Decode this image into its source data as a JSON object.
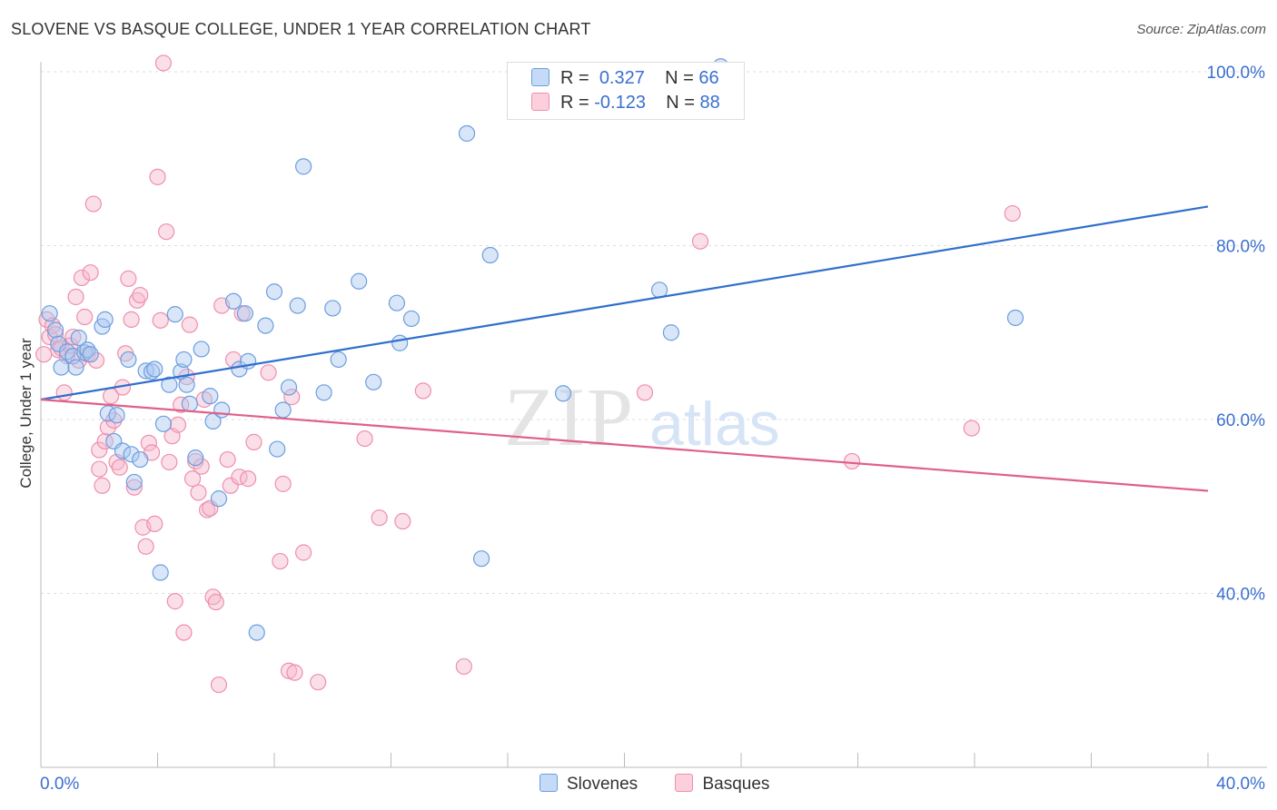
{
  "title": "SLOVENE VS BASQUE COLLEGE, UNDER 1 YEAR CORRELATION CHART",
  "source": "Source: ZipAtlas.com",
  "watermark": {
    "zip": "ZIP",
    "atlas": "atlas"
  },
  "legend_top": [
    {
      "r_label": "R =",
      "r_value": "0.327",
      "n_label": "N =",
      "n_value": "66",
      "color": "#a8c8f0"
    },
    {
      "r_label": "R =",
      "r_value": "-0.123",
      "n_label": "N =",
      "n_value": "88",
      "color": "#f7b8cb"
    }
  ],
  "legend_bottom": [
    {
      "label": "Slovenes",
      "color": "#a8c8f0"
    },
    {
      "label": "Basques",
      "color": "#f7b8cb"
    }
  ],
  "chart_data": {
    "type": "scatter",
    "title": "SLOVENE VS BASQUE COLLEGE, UNDER 1 YEAR CORRELATION CHART",
    "xlabel": "",
    "ylabel": "College, Under 1 year",
    "xlim": [
      0,
      40
    ],
    "ylim": [
      20,
      100
    ],
    "x_tick_labels": [
      "0.0%",
      "40.0%"
    ],
    "y_tick_labels": [
      "40.0%",
      "60.0%",
      "80.0%",
      "100.0%"
    ],
    "y_ticks": [
      40,
      60,
      80,
      100
    ],
    "grid": true,
    "legend_position": "top-center",
    "series": [
      {
        "name": "Slovenes",
        "color": "#6d9de0",
        "fill": "#a8c8f0",
        "trend": {
          "x": [
            0,
            40
          ],
          "y": [
            62.3,
            84.5
          ],
          "color": "#2f6fcc"
        },
        "points": [
          [
            0.3,
            72.2
          ],
          [
            0.5,
            70.3
          ],
          [
            0.6,
            68.7
          ],
          [
            0.7,
            66.0
          ],
          [
            0.9,
            67.8
          ],
          [
            1.1,
            67.3
          ],
          [
            1.2,
            66.0
          ],
          [
            1.3,
            69.4
          ],
          [
            1.5,
            67.7
          ],
          [
            1.6,
            68.0
          ],
          [
            1.7,
            67.5
          ],
          [
            2.1,
            70.7
          ],
          [
            2.2,
            71.5
          ],
          [
            2.3,
            60.7
          ],
          [
            2.5,
            57.5
          ],
          [
            2.6,
            60.5
          ],
          [
            2.8,
            56.4
          ],
          [
            3.0,
            66.9
          ],
          [
            3.1,
            56.0
          ],
          [
            3.2,
            52.8
          ],
          [
            3.4,
            55.4
          ],
          [
            3.6,
            65.6
          ],
          [
            3.8,
            65.5
          ],
          [
            3.9,
            65.8
          ],
          [
            4.1,
            42.4
          ],
          [
            4.2,
            59.5
          ],
          [
            4.4,
            64.0
          ],
          [
            4.6,
            72.1
          ],
          [
            4.8,
            65.5
          ],
          [
            4.9,
            66.9
          ],
          [
            5.0,
            64.0
          ],
          [
            5.1,
            61.8
          ],
          [
            5.3,
            55.6
          ],
          [
            5.5,
            68.1
          ],
          [
            5.8,
            62.7
          ],
          [
            5.9,
            59.8
          ],
          [
            6.1,
            50.9
          ],
          [
            6.2,
            61.1
          ],
          [
            6.6,
            73.6
          ],
          [
            6.8,
            65.8
          ],
          [
            7.0,
            72.2
          ],
          [
            7.1,
            66.7
          ],
          [
            7.4,
            35.5
          ],
          [
            7.7,
            70.8
          ],
          [
            8.0,
            74.7
          ],
          [
            8.1,
            56.6
          ],
          [
            8.3,
            61.1
          ],
          [
            8.5,
            63.7
          ],
          [
            8.8,
            73.1
          ],
          [
            9.0,
            89.1
          ],
          [
            9.7,
            63.1
          ],
          [
            10.0,
            72.8
          ],
          [
            10.2,
            66.9
          ],
          [
            10.9,
            75.9
          ],
          [
            11.4,
            64.3
          ],
          [
            12.2,
            73.4
          ],
          [
            12.3,
            68.8
          ],
          [
            12.7,
            71.6
          ],
          [
            14.6,
            92.9
          ],
          [
            15.1,
            44.0
          ],
          [
            15.4,
            78.9
          ],
          [
            17.9,
            63.0
          ],
          [
            21.2,
            74.9
          ],
          [
            21.6,
            70.0
          ],
          [
            23.3,
            100.6
          ],
          [
            33.4,
            71.7
          ]
        ]
      },
      {
        "name": "Basques",
        "color": "#ee8fab",
        "fill": "#f7b8cb",
        "trend": {
          "x": [
            0,
            40
          ],
          "y": [
            62.3,
            51.8
          ],
          "color": "#e0608a"
        },
        "points": [
          [
            0.1,
            67.5
          ],
          [
            0.2,
            71.5
          ],
          [
            0.3,
            69.5
          ],
          [
            0.4,
            70.8
          ],
          [
            0.5,
            69.8
          ],
          [
            0.6,
            68.0
          ],
          [
            0.7,
            68.2
          ],
          [
            0.8,
            63.1
          ],
          [
            0.9,
            67.3
          ],
          [
            1.0,
            68.5
          ],
          [
            1.1,
            69.5
          ],
          [
            1.2,
            74.1
          ],
          [
            1.3,
            66.8
          ],
          [
            1.4,
            76.3
          ],
          [
            1.5,
            71.8
          ],
          [
            1.6,
            67.5
          ],
          [
            1.7,
            76.9
          ],
          [
            1.8,
            84.8
          ],
          [
            1.9,
            66.8
          ],
          [
            2.0,
            56.5
          ],
          [
            2.1,
            52.4
          ],
          [
            2.2,
            57.5
          ],
          [
            2.3,
            59.1
          ],
          [
            2.4,
            62.7
          ],
          [
            2.5,
            59.9
          ],
          [
            2.6,
            55.1
          ],
          [
            2.7,
            54.5
          ],
          [
            2.8,
            63.7
          ],
          [
            2.9,
            67.6
          ],
          [
            3.0,
            76.2
          ],
          [
            3.1,
            71.5
          ],
          [
            3.2,
            52.2
          ],
          [
            3.3,
            73.7
          ],
          [
            3.4,
            74.3
          ],
          [
            3.5,
            47.6
          ],
          [
            3.6,
            45.4
          ],
          [
            3.7,
            57.3
          ],
          [
            3.8,
            56.2
          ],
          [
            3.9,
            48.0
          ],
          [
            4.0,
            87.9
          ],
          [
            4.1,
            71.4
          ],
          [
            4.3,
            81.6
          ],
          [
            4.4,
            55.1
          ],
          [
            4.5,
            58.1
          ],
          [
            4.6,
            39.1
          ],
          [
            4.7,
            59.4
          ],
          [
            4.8,
            61.7
          ],
          [
            4.9,
            35.5
          ],
          [
            5.0,
            64.9
          ],
          [
            5.1,
            70.9
          ],
          [
            5.2,
            53.2
          ],
          [
            5.3,
            55.2
          ],
          [
            5.4,
            51.6
          ],
          [
            5.5,
            54.6
          ],
          [
            5.6,
            62.3
          ],
          [
            5.7,
            49.6
          ],
          [
            5.8,
            49.8
          ],
          [
            5.9,
            39.6
          ],
          [
            6.0,
            39.0
          ],
          [
            6.1,
            29.5
          ],
          [
            6.2,
            73.1
          ],
          [
            6.4,
            55.4
          ],
          [
            6.5,
            52.4
          ],
          [
            6.6,
            66.9
          ],
          [
            6.8,
            53.4
          ],
          [
            6.9,
            72.2
          ],
          [
            7.1,
            53.2
          ],
          [
            7.3,
            57.4
          ],
          [
            7.8,
            65.4
          ],
          [
            8.2,
            43.7
          ],
          [
            8.3,
            52.6
          ],
          [
            8.5,
            31.1
          ],
          [
            8.6,
            62.6
          ],
          [
            8.7,
            30.9
          ],
          [
            9.0,
            44.7
          ],
          [
            9.5,
            29.8
          ],
          [
            11.1,
            57.8
          ],
          [
            11.6,
            48.7
          ],
          [
            12.4,
            48.3
          ],
          [
            13.1,
            63.3
          ],
          [
            14.5,
            31.6
          ],
          [
            4.2,
            101.0
          ],
          [
            20.7,
            63.1
          ],
          [
            22.6,
            80.5
          ],
          [
            27.8,
            55.2
          ],
          [
            31.9,
            59.0
          ],
          [
            33.3,
            83.7
          ],
          [
            2.0,
            54.3
          ]
        ]
      }
    ]
  }
}
